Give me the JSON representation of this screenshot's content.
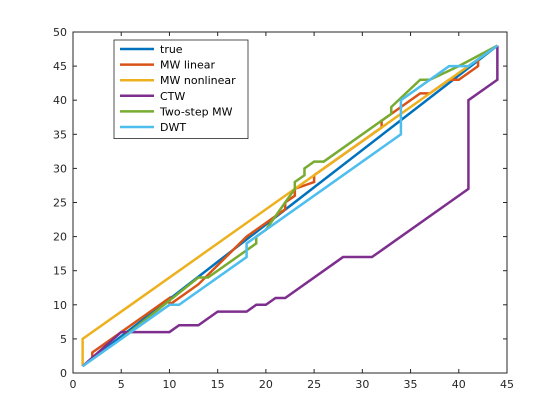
{
  "chart_data": {
    "type": "line",
    "title": "",
    "xlabel": "",
    "ylabel": "",
    "xlim": [
      0,
      45
    ],
    "ylim": [
      0,
      50
    ],
    "xticks": [
      0,
      5,
      10,
      15,
      20,
      25,
      30,
      35,
      40,
      45
    ],
    "yticks": [
      0,
      5,
      10,
      15,
      20,
      25,
      30,
      35,
      40,
      45,
      50
    ],
    "grid": false,
    "legend_position": "top-left",
    "series": [
      {
        "name": "true",
        "color": "#0072BD",
        "x": [
          1,
          44
        ],
        "y": [
          1,
          48
        ]
      },
      {
        "name": "MW linear",
        "color": "#D95319",
        "x": [
          2,
          2,
          10,
          10,
          11,
          13,
          18,
          22,
          22,
          23,
          23,
          25,
          25,
          32,
          32,
          33,
          36,
          37,
          39,
          40,
          42,
          42
        ],
        "y": [
          2,
          3,
          11,
          10,
          11,
          13,
          20,
          24,
          25,
          26,
          27,
          28,
          29,
          36,
          37,
          38,
          41,
          41,
          43,
          43,
          45,
          46
        ]
      },
      {
        "name": "MW nonlinear",
        "color": "#EDB120",
        "x": [
          1,
          1,
          44
        ],
        "y": [
          1,
          5,
          48
        ]
      },
      {
        "name": "CTW",
        "color": "#7E2F8E",
        "x": [
          1,
          5,
          6,
          10,
          11,
          13,
          15,
          18,
          19,
          20,
          21,
          22,
          28,
          31,
          41,
          41,
          44,
          44
        ],
        "y": [
          1,
          6,
          6,
          6,
          7,
          7,
          9,
          9,
          10,
          10,
          11,
          11,
          17,
          17,
          27,
          40,
          43,
          48
        ]
      },
      {
        "name": "Two-step MW",
        "color": "#77AC30",
        "x": [
          5,
          13,
          14,
          18,
          18,
          19,
          19,
          20,
          23,
          23,
          24,
          24,
          25,
          26,
          33,
          33,
          36,
          37,
          40,
          44
        ],
        "y": [
          5,
          14,
          14,
          18,
          18,
          19,
          20,
          21,
          27,
          28,
          29,
          30,
          31,
          31,
          38,
          39,
          43,
          43,
          45,
          48
        ]
      },
      {
        "name": "DWT",
        "color": "#4DBEEE",
        "x": [
          1,
          10,
          11,
          18,
          18,
          34,
          34,
          39,
          41,
          44
        ],
        "y": [
          1,
          10,
          10,
          17,
          19,
          35,
          40,
          45,
          45,
          48
        ]
      }
    ]
  }
}
